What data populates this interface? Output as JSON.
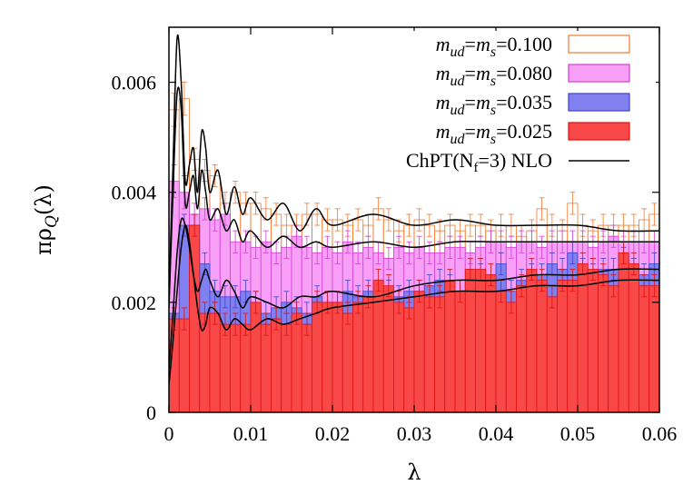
{
  "chart_data": {
    "type": "bar",
    "xlabel": "λ",
    "ylabel": "πρQ(λ)",
    "xlim": [
      0,
      0.06
    ],
    "ylim": [
      0,
      0.007
    ],
    "x_ticks": [
      "0",
      "0.01",
      "0.02",
      "0.03",
      "0.04",
      "0.05",
      "0.06"
    ],
    "y_ticks": [
      "0",
      "0.002",
      "0.004",
      "0.006"
    ],
    "bin_width": 0.00125,
    "bin_starts": [
      0,
      0.00125,
      0.0025,
      0.00375,
      0.005,
      0.00625,
      0.0075,
      0.00875,
      0.01,
      0.01125,
      0.0125,
      0.01375,
      0.015,
      0.01625,
      0.0175,
      0.01875,
      0.02,
      0.02125,
      0.0225,
      0.02375,
      0.025,
      0.02625,
      0.0275,
      0.02875,
      0.03,
      0.03125,
      0.0325,
      0.03375,
      0.035,
      0.03625,
      0.0375,
      0.03875,
      0.04,
      0.04125,
      0.0425,
      0.04375,
      0.045,
      0.04625,
      0.0475,
      0.04875,
      0.05,
      0.05125,
      0.0525,
      0.05375,
      0.055,
      0.05625,
      0.0575,
      0.05875
    ],
    "legend": {
      "position": "top-right",
      "entries": [
        {
          "prefix": "m",
          "sub1": "ud",
          "mid": "=m",
          "sub2": "s",
          "suffix": "=0.100"
        },
        {
          "prefix": "m",
          "sub1": "ud",
          "mid": "=m",
          "sub2": "s",
          "suffix": "=0.080"
        },
        {
          "prefix": "m",
          "sub1": "ud",
          "mid": "=m",
          "sub2": "s",
          "suffix": "=0.035"
        },
        {
          "prefix": "m",
          "sub1": "ud",
          "mid": "=m",
          "sub2": "s",
          "suffix": "=0.025"
        }
      ],
      "line_entry": "ChPT(Nf=3) NLO"
    },
    "series": [
      {
        "mass": "0.100",
        "fill": "none",
        "stroke": "#f07830",
        "values": [
          0.0055,
          0.0057,
          0.0046,
          0.0044,
          0.0043,
          0.0038,
          0.004,
          0.0038,
          0.0038,
          0.0037,
          0.0036,
          0.0034,
          0.0034,
          0.0036,
          0.0036,
          0.0035,
          0.0035,
          0.0034,
          0.0035,
          0.0034,
          0.0037,
          0.0035,
          0.0033,
          0.0034,
          0.0035,
          0.0034,
          0.0033,
          0.0034,
          0.0033,
          0.0034,
          0.0034,
          0.0033,
          0.0034,
          0.0034,
          0.0032,
          0.0033,
          0.0037,
          0.0034,
          0.0033,
          0.0038,
          0.0034,
          0.0033,
          0.0034,
          0.0034,
          0.0034,
          0.0034,
          0.0035,
          0.0036
        ],
        "errors": [
          0.0003,
          0.0003,
          0.0002,
          0.0002,
          0.0002,
          0.0002,
          0.0002,
          0.0002,
          0.0002,
          0.0002,
          0.0002,
          0.0002,
          0.0002,
          0.0002,
          0.0002,
          0.0002,
          0.0002,
          0.0002,
          0.0002,
          0.0002,
          0.0002,
          0.0002,
          0.0002,
          0.0002,
          0.0002,
          0.0002,
          0.0002,
          0.0002,
          0.0002,
          0.0002,
          0.0002,
          0.0002,
          0.0002,
          0.0002,
          0.0002,
          0.0002,
          0.0002,
          0.0002,
          0.0002,
          0.0002,
          0.0002,
          0.0002,
          0.0002,
          0.0002,
          0.0002,
          0.0002,
          0.0002,
          0.0002
        ]
      },
      {
        "mass": "0.080",
        "fill": "#f8a0f8",
        "stroke": "#d040d0",
        "values": [
          0.0042,
          0.004,
          0.0036,
          0.0037,
          0.0035,
          0.0036,
          0.0031,
          0.0031,
          0.003,
          0.0031,
          0.0029,
          0.003,
          0.0032,
          0.003,
          0.0029,
          0.003,
          0.0029,
          0.0031,
          0.0029,
          0.003,
          0.0029,
          0.0028,
          0.003,
          0.0029,
          0.003,
          0.0029,
          0.0029,
          0.003,
          0.003,
          0.0029,
          0.003,
          0.0031,
          0.0031,
          0.003,
          0.0031,
          0.0031,
          0.003,
          0.0031,
          0.0031,
          0.0031,
          0.0031,
          0.003,
          0.0031,
          0.0032,
          0.0031,
          0.0031,
          0.0031,
          0.0031
        ],
        "errors": [
          0.0003,
          0.0003,
          0.0002,
          0.0002,
          0.0002,
          0.0002,
          0.0002,
          0.0002,
          0.0002,
          0.0002,
          0.0002,
          0.0002,
          0.0002,
          0.0002,
          0.0002,
          0.0002,
          0.0002,
          0.0002,
          0.0002,
          0.0002,
          0.0002,
          0.0002,
          0.0002,
          0.0002,
          0.0002,
          0.0002,
          0.0002,
          0.0002,
          0.0002,
          0.0002,
          0.0002,
          0.0002,
          0.0002,
          0.0002,
          0.0002,
          0.0002,
          0.0002,
          0.0002,
          0.0002,
          0.0002,
          0.0002,
          0.0002,
          0.0002,
          0.0002,
          0.0002,
          0.0002,
          0.0002,
          0.0002
        ]
      },
      {
        "mass": "0.035",
        "fill": "#8080f0",
        "stroke": "#4040d0",
        "values": [
          0.0018,
          0.0034,
          0.0034,
          0.0027,
          0.0022,
          0.0021,
          0.0021,
          0.0022,
          0.002,
          0.0018,
          0.0019,
          0.002,
          0.0019,
          0.0018,
          0.0021,
          0.002,
          0.002,
          0.0022,
          0.0021,
          0.0022,
          0.0022,
          0.0022,
          0.0021,
          0.0022,
          0.0022,
          0.0023,
          0.0024,
          0.0023,
          0.0022,
          0.0024,
          0.0025,
          0.0023,
          0.0027,
          0.0022,
          0.0024,
          0.0025,
          0.0025,
          0.0027,
          0.0026,
          0.0029,
          0.0026,
          0.0025,
          0.0026,
          0.0026,
          0.0028,
          0.0026,
          0.0025,
          0.0027
        ],
        "errors": [
          0.0002,
          0.0002,
          0.0002,
          0.0002,
          0.0002,
          0.0002,
          0.0002,
          0.0002,
          0.0002,
          0.0002,
          0.0002,
          0.0002,
          0.0002,
          0.0002,
          0.0002,
          0.0002,
          0.0002,
          0.0002,
          0.0002,
          0.0002,
          0.0002,
          0.0002,
          0.0002,
          0.0002,
          0.0002,
          0.0002,
          0.0002,
          0.0002,
          0.0002,
          0.0002,
          0.0002,
          0.0002,
          0.0002,
          0.0002,
          0.0002,
          0.0002,
          0.0002,
          0.0002,
          0.0002,
          0.0002,
          0.0002,
          0.0002,
          0.0002,
          0.0002,
          0.0002,
          0.0002,
          0.0002,
          0.0002
        ]
      },
      {
        "mass": "0.025",
        "fill": "#f84848",
        "stroke": "#e01010",
        "values": [
          0.0017,
          0.0017,
          0.0034,
          0.0018,
          0.0018,
          0.0016,
          0.0016,
          0.0016,
          0.002,
          0.0016,
          0.0017,
          0.0016,
          0.0018,
          0.0016,
          0.002,
          0.002,
          0.002,
          0.0018,
          0.002,
          0.0021,
          0.0024,
          0.0023,
          0.002,
          0.0019,
          0.0022,
          0.0021,
          0.0021,
          0.0024,
          0.0022,
          0.0026,
          0.0026,
          0.0025,
          0.0022,
          0.002,
          0.0023,
          0.0026,
          0.0024,
          0.0021,
          0.0024,
          0.0024,
          0.0027,
          0.0026,
          0.0025,
          0.0023,
          0.0029,
          0.0027,
          0.0023,
          0.0023
        ],
        "errors": [
          0.0002,
          0.0002,
          0.0002,
          0.0002,
          0.0002,
          0.0002,
          0.0002,
          0.0002,
          0.0002,
          0.0002,
          0.0002,
          0.0002,
          0.0002,
          0.0002,
          0.0002,
          0.0002,
          0.0002,
          0.0002,
          0.0002,
          0.0002,
          0.0002,
          0.0002,
          0.0002,
          0.0002,
          0.0002,
          0.0002,
          0.0002,
          0.0002,
          0.0002,
          0.0002,
          0.0002,
          0.0002,
          0.0002,
          0.0002,
          0.0002,
          0.0002,
          0.0002,
          0.0002,
          0.0002,
          0.0002,
          0.0002,
          0.0002,
          0.0002,
          0.0002,
          0.0002,
          0.0002,
          0.0002,
          0.0002
        ]
      }
    ],
    "curves": {
      "name": "ChPT(Nf=3) NLO",
      "color": "#000000",
      "x": [
        0,
        0.0005,
        0.001,
        0.0015,
        0.002,
        0.0025,
        0.003,
        0.0035,
        0.004,
        0.0045,
        0.005,
        0.006,
        0.007,
        0.008,
        0.009,
        0.01,
        0.012,
        0.014,
        0.016,
        0.018,
        0.02,
        0.025,
        0.03,
        0.035,
        0.04,
        0.045,
        0.05,
        0.055,
        0.06
      ],
      "lines": [
        [
          0.0021,
          0.0045,
          0.0068,
          0.006,
          0.0042,
          0.0045,
          0.0048,
          0.004,
          0.0051,
          0.0048,
          0.004,
          0.0044,
          0.0036,
          0.0041,
          0.0036,
          0.0039,
          0.0035,
          0.0038,
          0.0033,
          0.0037,
          0.0034,
          0.0036,
          0.0034,
          0.0035,
          0.0034,
          0.0034,
          0.0034,
          0.0033,
          0.0033
        ],
        [
          0.0019,
          0.004,
          0.0058,
          0.0055,
          0.0038,
          0.004,
          0.0043,
          0.0037,
          0.0044,
          0.004,
          0.0035,
          0.0037,
          0.0033,
          0.0035,
          0.0031,
          0.0033,
          0.003,
          0.0032,
          0.003,
          0.0031,
          0.003,
          0.0031,
          0.003,
          0.0031,
          0.0031,
          0.0031,
          0.0031,
          0.0031,
          0.0031
        ],
        [
          0.0008,
          0.0018,
          0.0029,
          0.0035,
          0.0034,
          0.003,
          0.0025,
          0.0022,
          0.0024,
          0.0026,
          0.0024,
          0.0021,
          0.0024,
          0.0022,
          0.0019,
          0.0021,
          0.002,
          0.0019,
          0.0021,
          0.0021,
          0.0022,
          0.0021,
          0.0023,
          0.0024,
          0.0024,
          0.0025,
          0.0025,
          0.0026,
          0.0026
        ],
        [
          0.0005,
          0.0013,
          0.0022,
          0.003,
          0.0034,
          0.0031,
          0.0025,
          0.0019,
          0.0015,
          0.0016,
          0.0019,
          0.0018,
          0.0015,
          0.0017,
          0.0016,
          0.0015,
          0.0017,
          0.0016,
          0.0017,
          0.0018,
          0.0019,
          0.002,
          0.0021,
          0.0022,
          0.0022,
          0.0023,
          0.0023,
          0.0024,
          0.0024
        ]
      ]
    }
  }
}
